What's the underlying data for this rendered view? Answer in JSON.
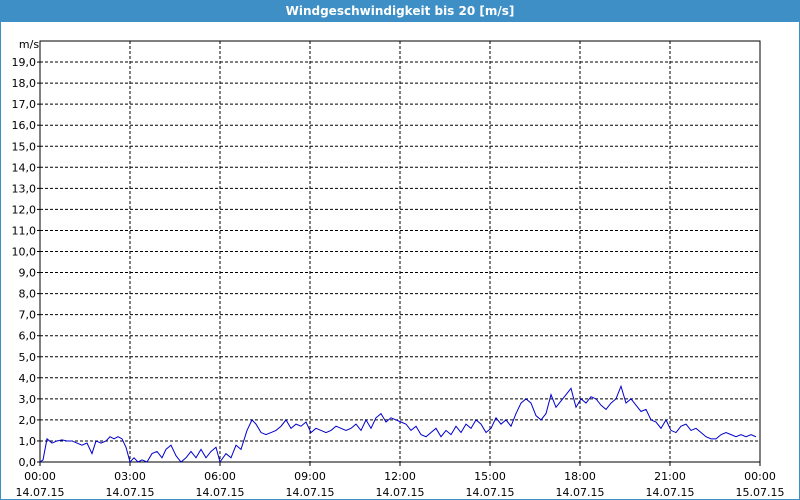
{
  "chart_data": {
    "type": "line",
    "title": "Windgeschwindigkeit bis 20 [m/s]",
    "y_label": "m/s",
    "xlim": [
      0,
      1440
    ],
    "ylim": [
      0,
      20
    ],
    "grid": true,
    "xticks": [
      {
        "value": 0,
        "label": "00:00",
        "date": "14.07.15"
      },
      {
        "value": 180,
        "label": "03:00",
        "date": "14.07.15"
      },
      {
        "value": 360,
        "label": "06:00",
        "date": "14.07.15"
      },
      {
        "value": 540,
        "label": "09:00",
        "date": "14.07.15"
      },
      {
        "value": 720,
        "label": "12:00",
        "date": "14.07.15"
      },
      {
        "value": 900,
        "label": "15:00",
        "date": "14.07.15"
      },
      {
        "value": 1080,
        "label": "18:00",
        "date": "14.07.15"
      },
      {
        "value": 1260,
        "label": "21:00",
        "date": "14.07.15"
      },
      {
        "value": 1440,
        "label": "00:00",
        "date": "15.07.15"
      }
    ],
    "yticks": [
      {
        "value": 0,
        "label": "0,0"
      },
      {
        "value": 1,
        "label": "1,0"
      },
      {
        "value": 2,
        "label": "2,0"
      },
      {
        "value": 3,
        "label": "3,0"
      },
      {
        "value": 4,
        "label": "4,0"
      },
      {
        "value": 5,
        "label": "5,0"
      },
      {
        "value": 6,
        "label": "6,0"
      },
      {
        "value": 7,
        "label": "7,0"
      },
      {
        "value": 8,
        "label": "8,0"
      },
      {
        "value": 9,
        "label": "9,0"
      },
      {
        "value": 10,
        "label": "10,0"
      },
      {
        "value": 11,
        "label": "11,0"
      },
      {
        "value": 12,
        "label": "12,0"
      },
      {
        "value": 13,
        "label": "13,0"
      },
      {
        "value": 14,
        "label": "14,0"
      },
      {
        "value": 15,
        "label": "15,0"
      },
      {
        "value": 16,
        "label": "16,0"
      },
      {
        "value": 17,
        "label": "17,0"
      },
      {
        "value": 18,
        "label": "18,0"
      },
      {
        "value": 19,
        "label": "19,0"
      }
    ],
    "x": [
      0,
      6,
      14,
      24,
      34,
      44,
      54,
      64,
      74,
      84,
      94,
      104,
      112,
      122,
      132,
      140,
      148,
      156,
      164,
      172,
      180,
      188,
      196,
      204,
      214,
      224,
      234,
      244,
      252,
      262,
      272,
      282,
      292,
      302,
      312,
      322,
      332,
      342,
      352,
      360,
      372,
      382,
      392,
      402,
      414,
      424,
      432,
      442,
      452,
      462,
      472,
      482,
      492,
      502,
      512,
      522,
      532,
      542,
      552,
      562,
      572,
      582,
      592,
      602,
      612,
      622,
      632,
      642,
      652,
      662,
      672,
      682,
      692,
      702,
      712,
      722,
      732,
      742,
      752,
      762,
      772,
      782,
      792,
      802,
      812,
      822,
      832,
      842,
      852,
      862,
      872,
      882,
      892,
      902,
      912,
      922,
      932,
      942,
      952,
      962,
      972,
      982,
      992,
      1002,
      1012,
      1022,
      1032,
      1042,
      1052,
      1062,
      1072,
      1082,
      1092,
      1102,
      1112,
      1122,
      1132,
      1142,
      1152,
      1162,
      1172,
      1182,
      1192,
      1202,
      1212,
      1222,
      1232,
      1242,
      1252,
      1262,
      1272,
      1282,
      1292,
      1302,
      1312,
      1322,
      1332,
      1342,
      1352,
      1362,
      1372,
      1382,
      1392,
      1402,
      1412,
      1422,
      1432
    ],
    "series": [
      {
        "name": "Windgeschwindigkeit",
        "color": "#0000cc",
        "values": [
          0.0,
          0.1,
          1.1,
          0.9,
          1.0,
          1.05,
          1.0,
          1.0,
          0.9,
          0.8,
          0.9,
          0.4,
          1.0,
          0.9,
          1.0,
          1.2,
          1.1,
          1.2,
          1.1,
          0.7,
          0.0,
          0.2,
          0.0,
          0.1,
          0.0,
          0.4,
          0.5,
          0.2,
          0.6,
          0.8,
          0.3,
          0.0,
          0.2,
          0.5,
          0.2,
          0.6,
          0.2,
          0.5,
          0.7,
          0.0,
          0.4,
          0.2,
          0.8,
          0.6,
          1.5,
          2.0,
          1.8,
          1.4,
          1.3,
          1.4,
          1.5,
          1.7,
          2.0,
          1.6,
          1.8,
          1.7,
          1.9,
          1.4,
          1.6,
          1.5,
          1.4,
          1.5,
          1.7,
          1.6,
          1.5,
          1.6,
          1.8,
          1.5,
          2.0,
          1.6,
          2.1,
          2.3,
          1.9,
          2.1,
          2.0,
          1.9,
          1.8,
          1.5,
          1.7,
          1.3,
          1.2,
          1.4,
          1.6,
          1.2,
          1.5,
          1.3,
          1.7,
          1.4,
          1.8,
          1.6,
          2.0,
          1.8,
          1.4,
          1.6,
          2.1,
          1.8,
          2.0,
          1.7,
          2.3,
          2.8,
          3.0,
          2.8,
          2.2,
          2.0,
          2.3,
          3.2,
          2.6,
          2.9,
          3.2,
          3.5,
          2.6,
          3.0,
          2.8,
          3.1,
          3.0,
          2.7,
          2.5,
          2.8,
          3.0,
          3.6,
          2.8,
          3.0,
          2.7,
          2.4,
          2.5,
          2.0,
          1.9,
          1.6,
          2.0,
          1.5,
          1.4,
          1.7,
          1.8,
          1.5,
          1.6,
          1.4,
          1.2,
          1.1,
          1.1,
          1.3,
          1.4,
          1.3,
          1.2,
          1.3,
          1.2,
          1.3,
          1.2
        ]
      }
    ]
  }
}
